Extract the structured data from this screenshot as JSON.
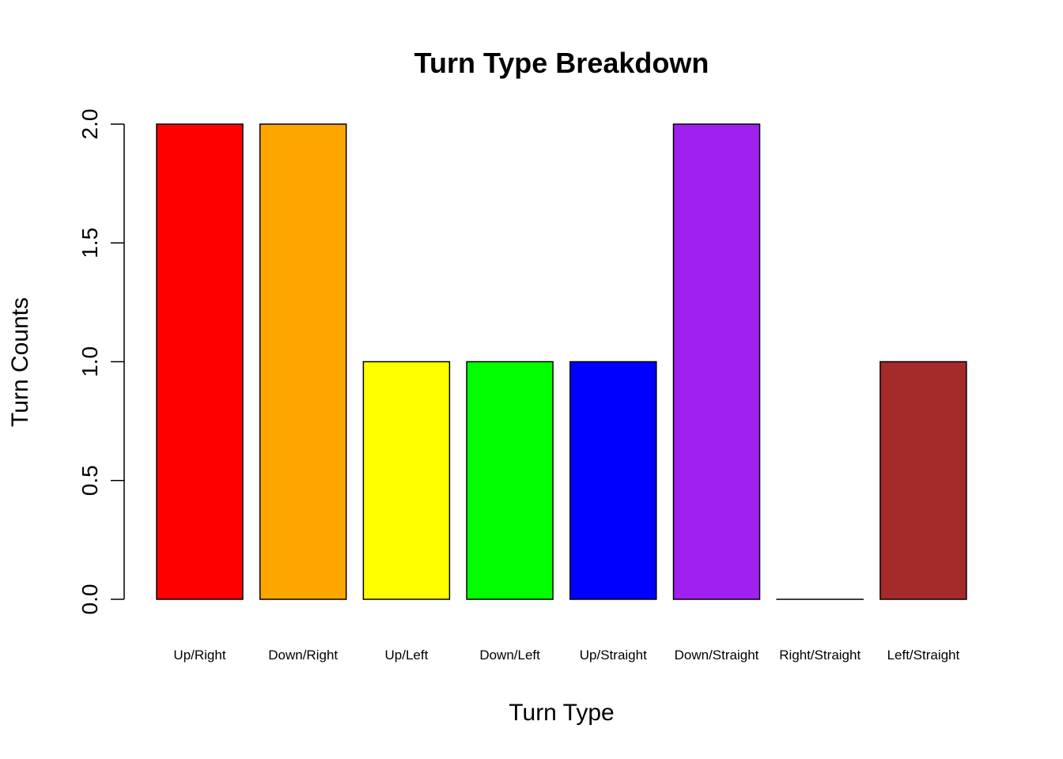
{
  "chart_data": {
    "type": "bar",
    "title": "Turn Type Breakdown",
    "xlabel": "Turn Type",
    "ylabel": "Turn Counts",
    "categories": [
      "Up/Right",
      "Down/Right",
      "Up/Left",
      "Down/Left",
      "Up/Straight",
      "Down/Straight",
      "Right/Straight",
      "Left/Straight"
    ],
    "values": [
      2,
      2,
      1,
      1,
      1,
      2,
      0,
      1
    ],
    "colors": [
      "#ff0000",
      "#ffa500",
      "#ffff00",
      "#00ff00",
      "#0000ff",
      "#a020f0",
      "#ffffff",
      "#a52a2a"
    ],
    "ylim": [
      0,
      2
    ],
    "yticks": [
      0,
      0.5,
      1,
      1.5,
      2
    ],
    "ytick_labels": [
      "0.0",
      "0.5",
      "1.0",
      "1.5",
      "2.0"
    ],
    "grid": false,
    "legend": "none"
  }
}
